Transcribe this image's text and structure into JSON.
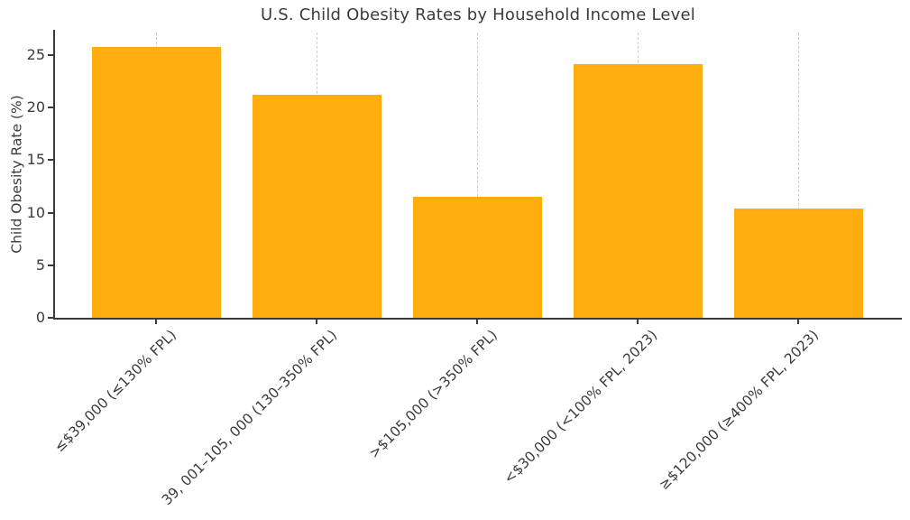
{
  "chart_data": {
    "type": "bar",
    "title": "U.S. Child Obesity Rates by Household Income Level",
    "ylabel": "Child Obesity Rate (%)",
    "xlabel": "",
    "categories": [
      "≤$39,000 (≤130% FPL)",
      "39, 001–105, 000 (130–350% FPL)",
      ">$105,000 (>350% FPL)",
      "<$30,000 (<100% FPL, 2023)",
      "≥$120,000 (≥400% FPL, 2023)"
    ],
    "values": [
      25.8,
      21.2,
      11.5,
      24.1,
      10.4
    ],
    "yticks": [
      0,
      5,
      10,
      15,
      20,
      25
    ],
    "ylim": [
      0,
      27.2
    ],
    "bar_color": "#FFAD0F",
    "gridline_color": "#cccccc",
    "axis_color": "#3a3a3a",
    "text_color": "#3b3b3b",
    "background_color": "#ffffff",
    "grid": "vertical dashed gridlines at bar centers",
    "legend_position": "none"
  }
}
